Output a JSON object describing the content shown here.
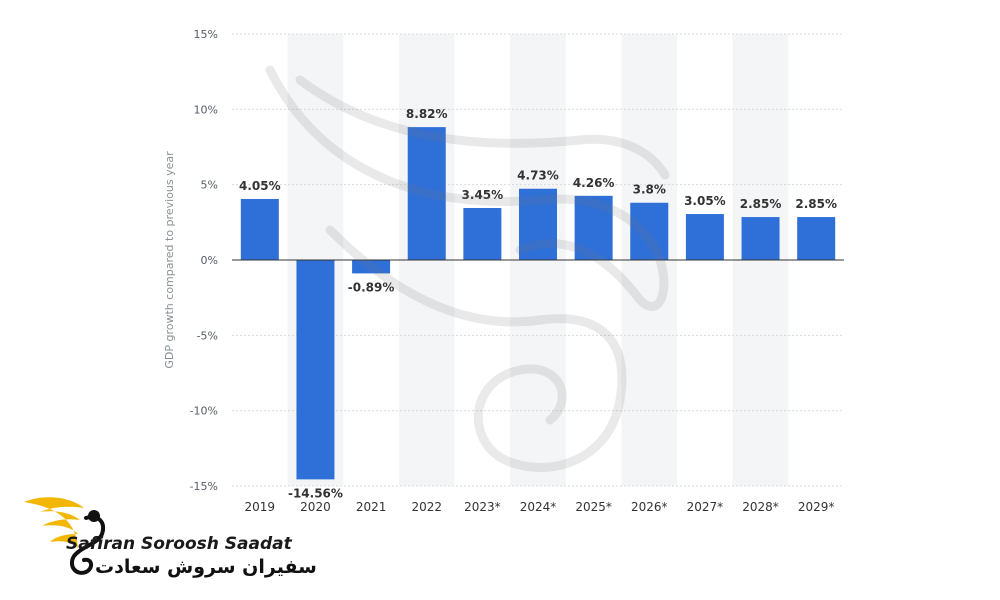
{
  "chart_data": {
    "type": "bar",
    "categories": [
      "2019",
      "2020",
      "2021",
      "2022",
      "2023*",
      "2024*",
      "2025*",
      "2026*",
      "2027*",
      "2028*",
      "2029*"
    ],
    "values": [
      4.05,
      -14.56,
      -0.89,
      8.82,
      3.45,
      4.73,
      4.26,
      3.8,
      3.05,
      2.85,
      2.85
    ],
    "value_labels": [
      "4.05%",
      "-14.56%",
      "-0.89%",
      "8.82%",
      "3.45%",
      "4.73%",
      "4.26%",
      "3.8%",
      "3.05%",
      "2.85%",
      "2.85%"
    ],
    "title": "",
    "xlabel": "",
    "ylabel": "GDP growth compared to previous year",
    "ylim": [
      -15,
      15
    ],
    "yticks": [
      15,
      10,
      5,
      0,
      -5,
      -10,
      -15
    ],
    "ytick_labels": [
      "15%",
      "10%",
      "5%",
      "0%",
      "-5%",
      "-10%",
      "-15%"
    ],
    "grid": true,
    "bar_color": "#2e6fd8"
  },
  "watermark": {
    "brand_latin": "Safiran Soroosh Saadat",
    "brand_persian": "سفیران سروش سعادت"
  }
}
